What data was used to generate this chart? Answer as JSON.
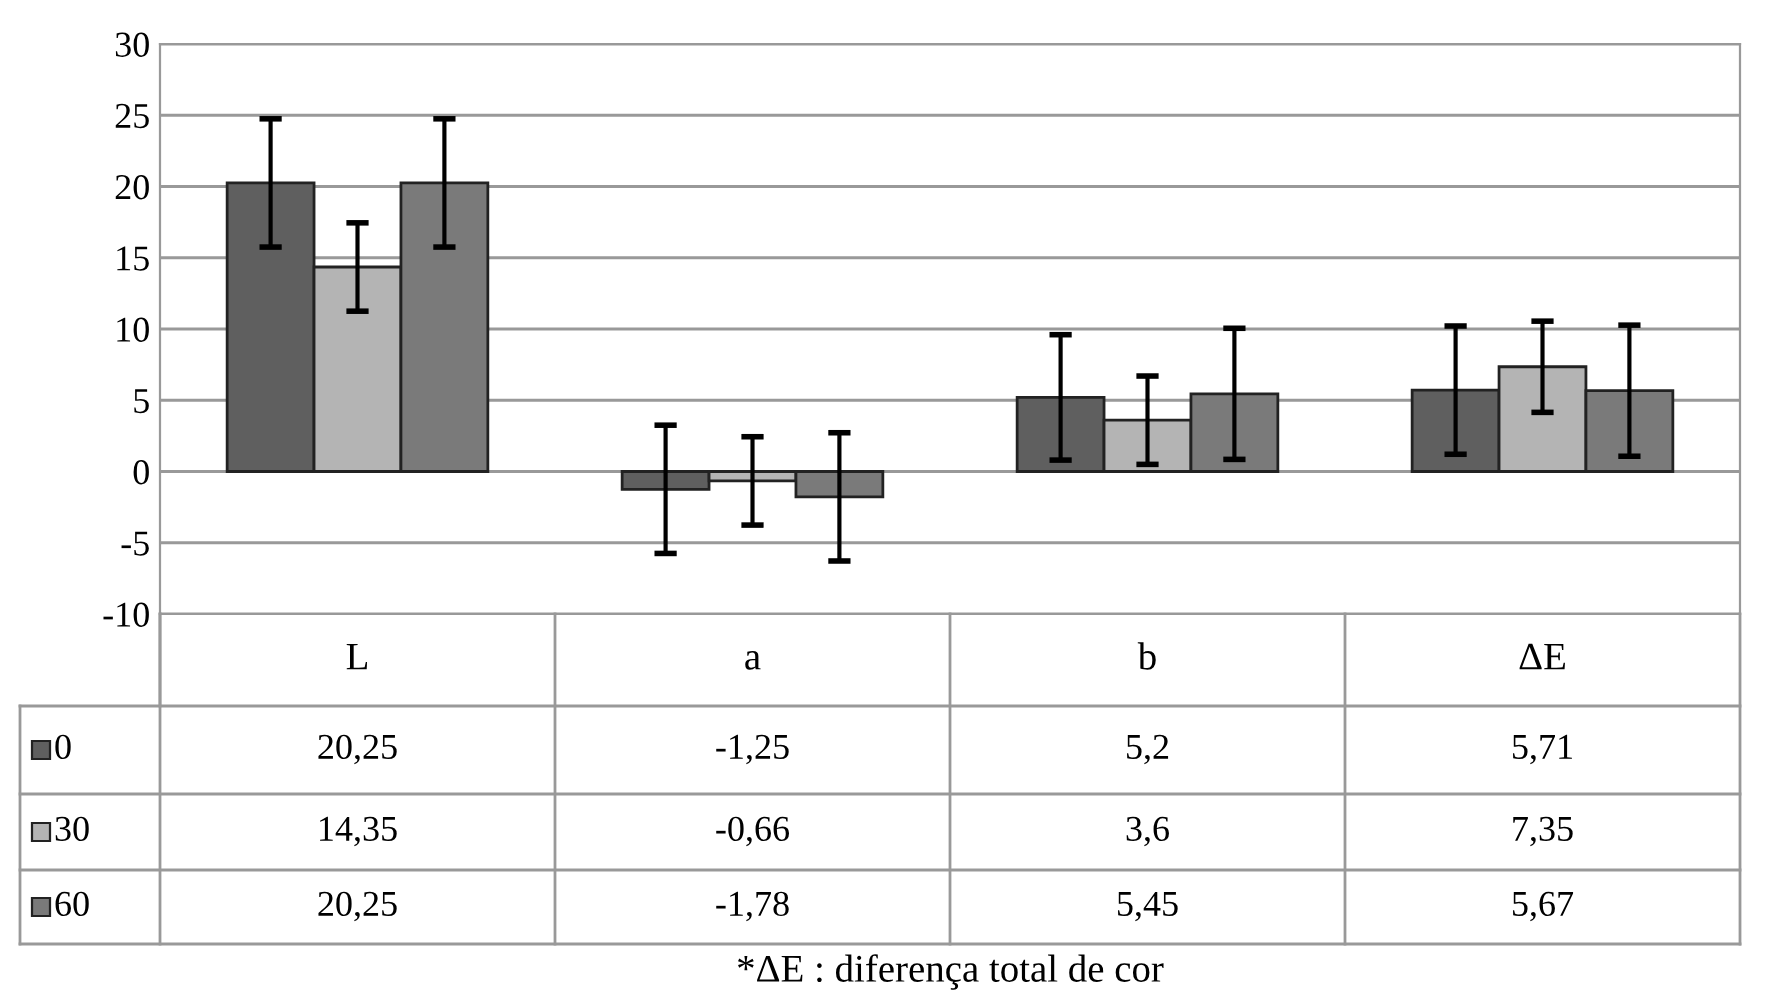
{
  "chart_data": {
    "type": "bar",
    "categories": [
      "L",
      "a",
      "b",
      "ΔE"
    ],
    "series": [
      {
        "name": "0",
        "color": "#5f5f5f",
        "values": [
          20.25,
          -1.25,
          5.2,
          5.71
        ],
        "errors": [
          4.5,
          4.5,
          4.4,
          4.5
        ],
        "value_labels": [
          "20,25",
          "-1,25",
          "5,2",
          "5,71"
        ]
      },
      {
        "name": "30",
        "color": "#b4b4b4",
        "values": [
          14.35,
          -0.66,
          3.6,
          7.35
        ],
        "errors": [
          3.1,
          3.1,
          3.1,
          3.2
        ],
        "value_labels": [
          "14,35",
          "-0,66",
          "3,6",
          "7,35"
        ]
      },
      {
        "name": "60",
        "color": "#7a7a7a",
        "values": [
          20.25,
          -1.78,
          5.45,
          5.67
        ],
        "errors": [
          4.5,
          4.5,
          4.6,
          4.6
        ],
        "value_labels": [
          "20,25",
          "-1,78",
          "5,45",
          "5,67"
        ]
      }
    ],
    "ylim": [
      -10,
      30
    ],
    "yticks": [
      -10,
      -5,
      0,
      5,
      10,
      15,
      20,
      25,
      30
    ],
    "grid": "y",
    "legend": "bottom",
    "annotations": [
      "*ΔE : diferença total de cor"
    ]
  }
}
